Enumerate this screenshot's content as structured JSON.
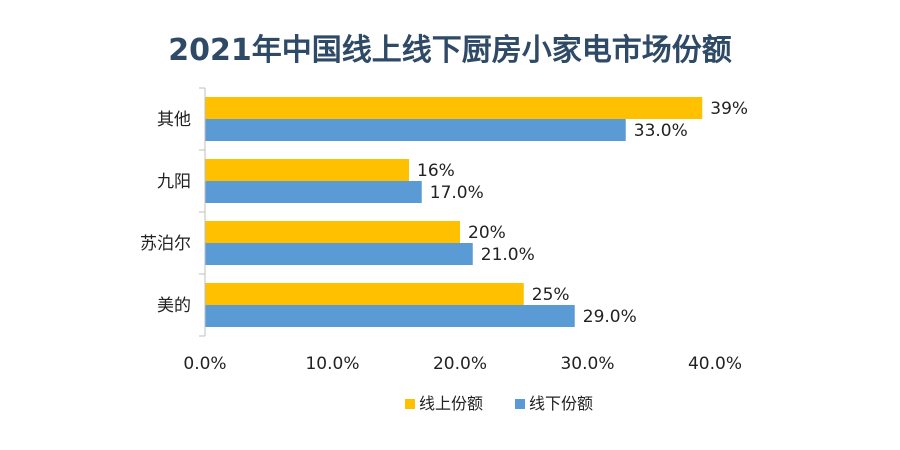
{
  "chart_data": {
    "type": "bar",
    "orientation": "horizontal",
    "title": "2021年中国线上线下厨房小家电市场份额",
    "categories": [
      "其他",
      "九阳",
      "苏泊尔",
      "美的"
    ],
    "series": [
      {
        "name": "线上份额",
        "color": "#ffc000",
        "values": [
          39,
          16,
          20,
          25
        ],
        "labels": [
          "39%",
          "16%",
          "20%",
          "25%"
        ]
      },
      {
        "name": "线下份额",
        "color": "#5b9bd5",
        "values": [
          33,
          17,
          21,
          29
        ],
        "labels": [
          "33.0%",
          "17.0%",
          "21.0%",
          "29.0%"
        ]
      }
    ],
    "xlim": [
      0,
      40
    ],
    "xticks": [
      0,
      10,
      20,
      30,
      40
    ],
    "xtick_labels": [
      "0.0%",
      "10.0%",
      "20.0%",
      "30.0%",
      "40.0%"
    ],
    "grid": false,
    "legend_position": "bottom-center",
    "axis_color": "#bfbfbf"
  }
}
